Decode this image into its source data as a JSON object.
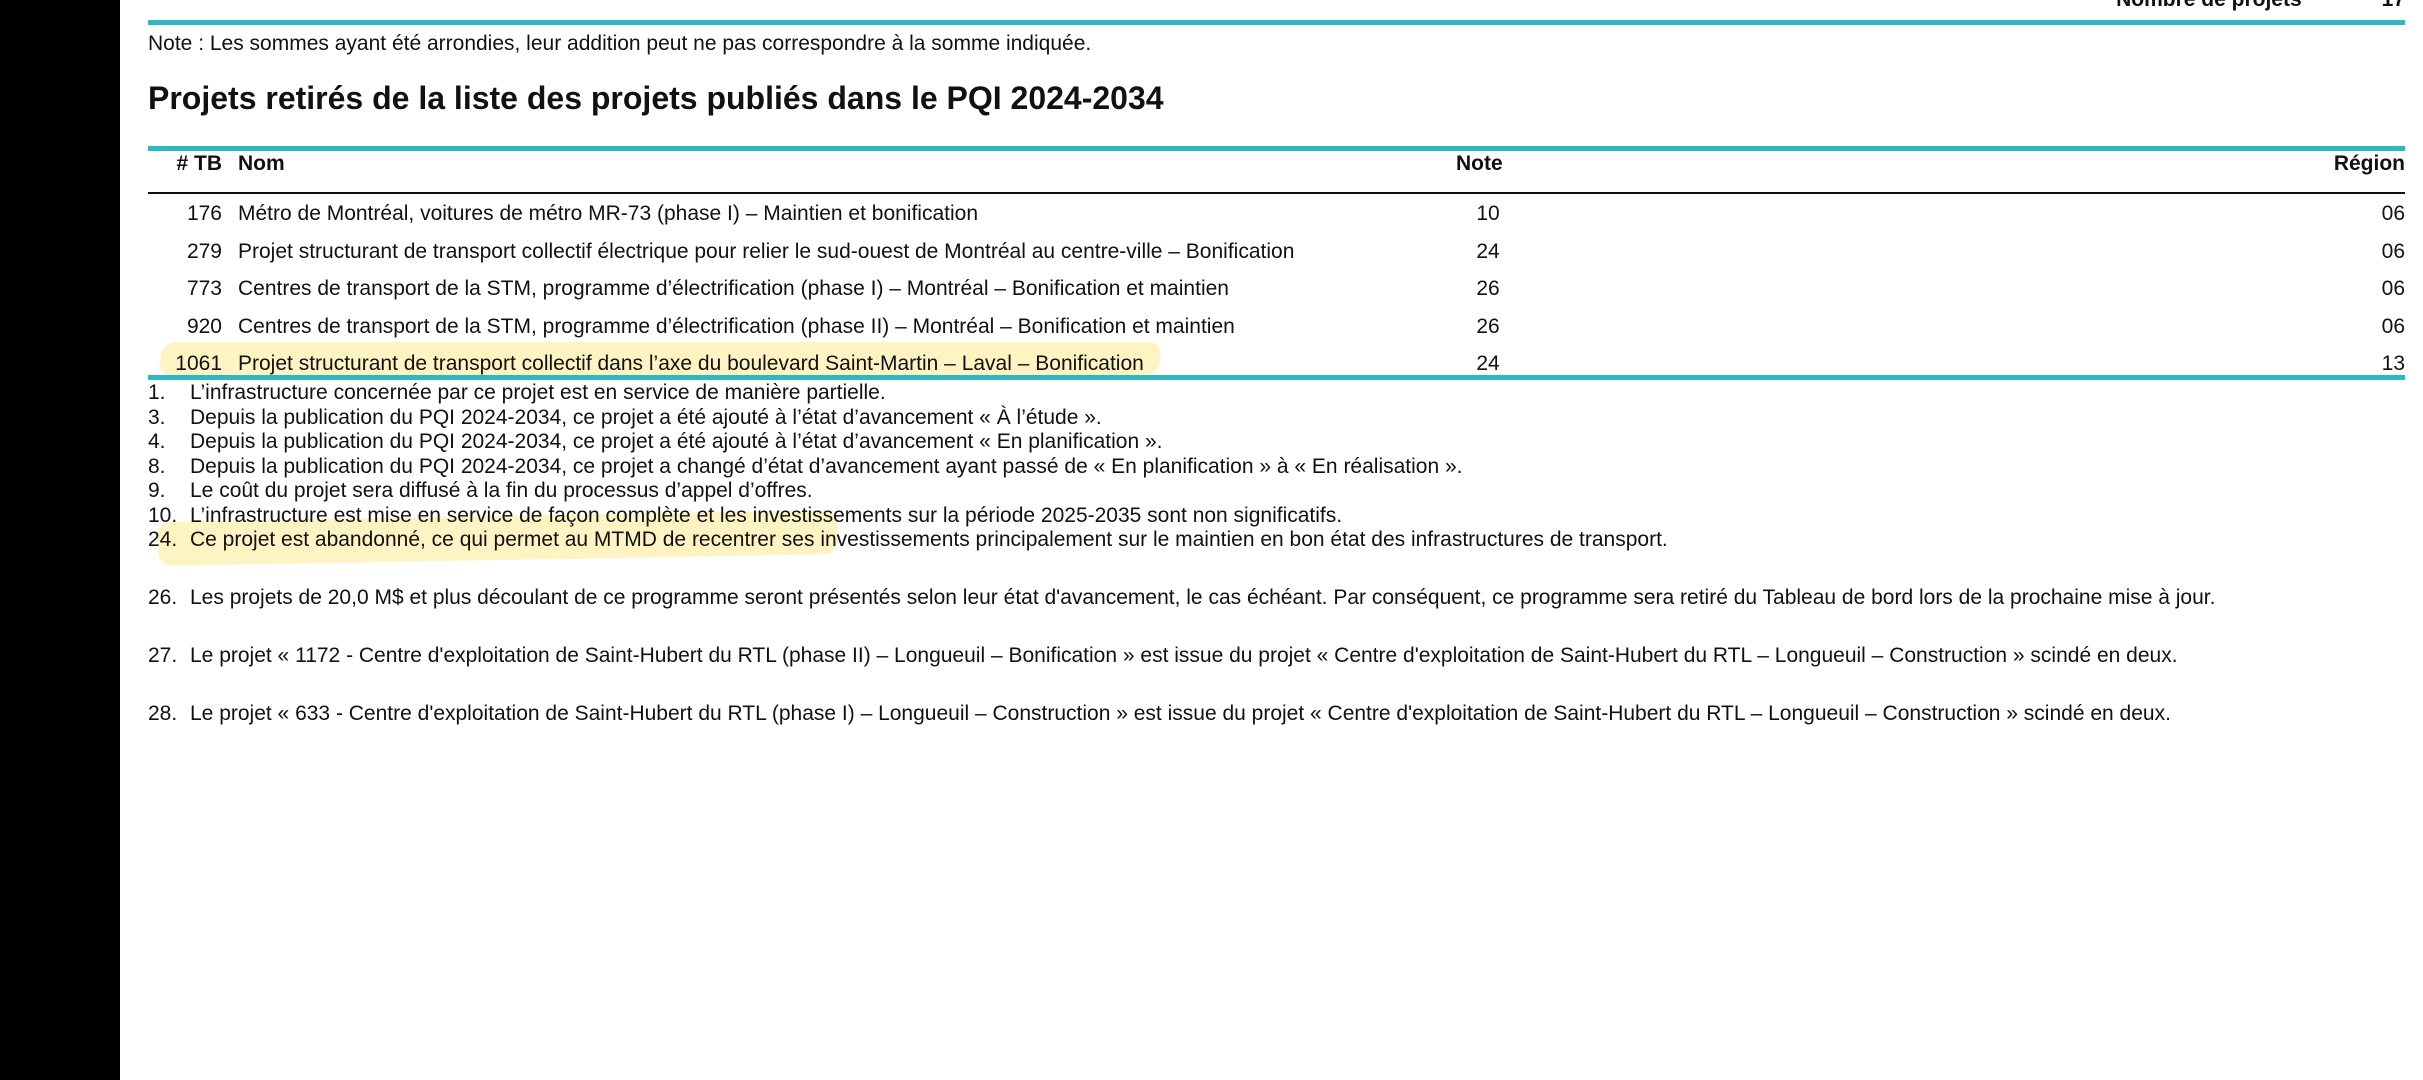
{
  "top_summary": {
    "label": "Nombre de projets",
    "value": "17"
  },
  "note": "Note : Les sommes ayant été arrondies, leur addition peut ne pas correspondre à la somme indiquée.",
  "section_title": "Projets retirés de la liste des projets publiés dans le PQI 2024-2034",
  "table": {
    "headers": {
      "tb": "# TB",
      "nom": "Nom",
      "note": "Note",
      "region": "Région"
    },
    "rows": [
      {
        "tb": "176",
        "nom": "Métro de Montréal, voitures de métro MR-73 (phase I) – Maintien et bonification",
        "note": "10",
        "region": "06"
      },
      {
        "tb": "279",
        "nom": "Projet structurant de transport collectif électrique pour relier le sud-ouest de Montréal au centre-ville – Bonification",
        "note": "24",
        "region": "06"
      },
      {
        "tb": "773",
        "nom": "Centres de transport de la STM, programme d’électrification (phase I) – Montréal – Bonification et maintien",
        "note": "26",
        "region": "06"
      },
      {
        "tb": "920",
        "nom": "Centres de transport de la STM, programme d’électrification (phase II) – Montréal – Bonification et maintien",
        "note": "26",
        "region": "06"
      },
      {
        "tb": "1061",
        "nom": "Projet structurant de transport collectif dans l’axe du boulevard Saint-Martin – Laval – Bonification",
        "note": "24",
        "region": "13"
      }
    ]
  },
  "highlight_color": "#fde98f",
  "accent_color": "#2fb8c2",
  "footnotes": [
    {
      "num": "1.",
      "text": "L’infrastructure concernée par ce projet est en service de manière partielle."
    },
    {
      "num": "3.",
      "text": "Depuis la publication du PQI 2024-2034, ce projet a été ajouté à l’état d’avancement « À l’étude »."
    },
    {
      "num": "4.",
      "text": "Depuis la publication du PQI 2024-2034, ce projet a été ajouté à l’état d’avancement « En planification »."
    },
    {
      "num": "8.",
      "text": "Depuis la publication du PQI 2024-2034, ce projet a changé d’état d’avancement ayant passé de « En planification » à « En réalisation »."
    },
    {
      "num": "9.",
      "text": "Le coût du projet sera diffusé à la fin du processus d’appel d’offres."
    },
    {
      "num": "10.",
      "text": "L’infrastructure est mise en service de façon complète et les investissements sur la période 2025-2035 sont non significatifs."
    },
    {
      "num": "24.",
      "text": "Ce projet est abandonné, ce qui permet au MTMD de recentrer ses investissements principalement sur le maintien en bon état des infrastructures de transport."
    },
    {
      "num": "26.",
      "text": "Les projets de 20,0 M$ et plus découlant de ce programme seront présentés selon leur état d'avancement, le cas échéant. Par conséquent, ce programme sera retiré du Tableau de bord lors de la prochaine mise à jour."
    },
    {
      "num": "27.",
      "text": "Le projet « 1172 - Centre d'exploitation de Saint-Hubert du RTL (phase II) – Longueuil – Bonification » est issue du projet « Centre d'exploitation de Saint-Hubert du RTL – Longueuil – Construction » scindé en deux."
    },
    {
      "num": "28.",
      "text": "Le projet « 633 - Centre d'exploitation de Saint-Hubert du RTL (phase I) – Longueuil – Construction » est issue du projet « Centre d'exploitation de Saint-Hubert du RTL – Longueuil – Construction » scindé en deux."
    }
  ]
}
